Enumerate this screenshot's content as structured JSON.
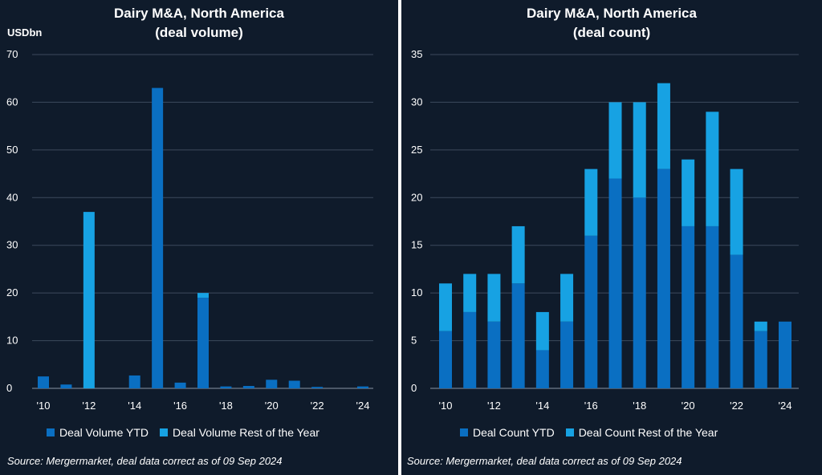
{
  "colors": {
    "ytd": "#0a6fc2",
    "rest": "#17a2e3",
    "background": "#0f1b2b",
    "grid": "#3d4a5c"
  },
  "chart_data": [
    {
      "type": "bar",
      "stacked": true,
      "title": "Dairy M&A, North America",
      "subtitle": "(deal volume)",
      "ylabel": "USDbn",
      "xlabel": "",
      "ylim": [
        0,
        70
      ],
      "yticks": [
        0,
        10,
        20,
        30,
        40,
        50,
        60,
        70
      ],
      "categories": [
        "2010",
        "2011",
        "2012",
        "2013",
        "2014",
        "2015",
        "2016",
        "2017",
        "2018",
        "2019",
        "2020",
        "2021",
        "2022",
        "2023",
        "2024"
      ],
      "tick_labels": [
        "'10",
        "",
        "'12",
        "",
        "'14",
        "",
        "'16",
        "",
        "'18",
        "",
        "'20",
        "",
        "'22",
        "",
        "'24"
      ],
      "series": [
        {
          "name": "Deal Volume YTD",
          "values": [
            2.5,
            0.8,
            0,
            0,
            2.7,
            63,
            1.2,
            19,
            0.4,
            0.5,
            1.8,
            1.6,
            0.3,
            0,
            0.4
          ]
        },
        {
          "name": "Deal Volume Rest of the Year",
          "values": [
            0,
            0,
            37,
            0,
            0,
            0,
            0,
            1,
            0,
            0,
            0,
            0,
            0,
            0,
            0
          ]
        }
      ],
      "source": "Source: Mergermarket, deal data correct as of 09 Sep 2024"
    },
    {
      "type": "bar",
      "stacked": true,
      "title": "Dairy M&A,  North America",
      "subtitle": "(deal count)",
      "ylabel": "",
      "xlabel": "",
      "ylim": [
        0,
        35
      ],
      "yticks": [
        0,
        5,
        10,
        15,
        20,
        25,
        30,
        35
      ],
      "categories": [
        "2010",
        "2011",
        "2012",
        "2013",
        "2014",
        "2015",
        "2016",
        "2017",
        "2018",
        "2019",
        "2020",
        "2021",
        "2022",
        "2023",
        "2024"
      ],
      "tick_labels": [
        "'10",
        "",
        "'12",
        "",
        "'14",
        "",
        "'16",
        "",
        "'18",
        "",
        "'20",
        "",
        "'22",
        "",
        "'24"
      ],
      "series": [
        {
          "name": "Deal Count YTD",
          "values": [
            6,
            8,
            7,
            11,
            4,
            7,
            16,
            22,
            20,
            23,
            17,
            17,
            14,
            6,
            7
          ]
        },
        {
          "name": "Deal Count Rest of the Year",
          "values": [
            5,
            4,
            5,
            6,
            4,
            5,
            7,
            8,
            10,
            9,
            7,
            12,
            9,
            1,
            0
          ]
        }
      ],
      "source": "Source: Mergermarket, deal data correct as of 09 Sep 2024"
    }
  ]
}
